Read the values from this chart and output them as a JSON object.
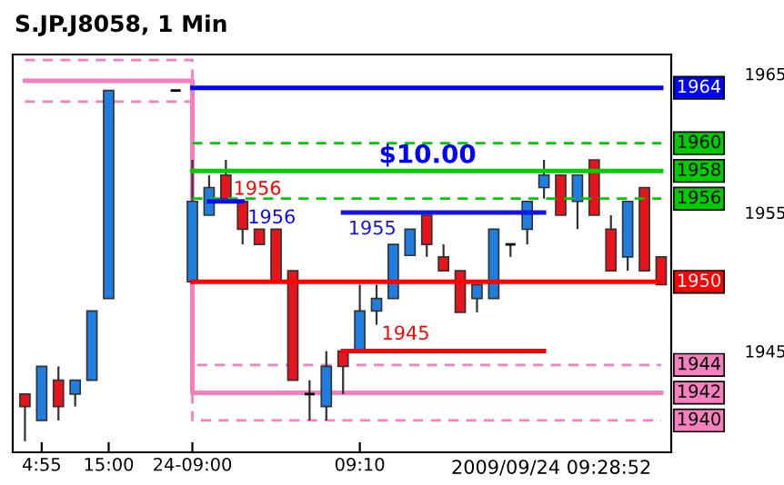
{
  "chart_data": {
    "type": "candlestick",
    "title": "S.JP.J8058, 1 Min",
    "categories": [
      null,
      "4:55",
      null,
      null,
      null,
      "15:00",
      null,
      null,
      null,
      null,
      "24-09:00",
      null,
      null,
      null,
      null,
      null,
      null,
      null,
      null,
      null,
      "09:10",
      null,
      null,
      null,
      null,
      null,
      null,
      null,
      null,
      null,
      null,
      null,
      null,
      null,
      null,
      null,
      null,
      null,
      null
    ],
    "ohlc": [
      [
        1941.9,
        1941.9,
        1938.5,
        1941.0
      ],
      [
        1940.0,
        1943.9,
        1940.0,
        1943.9
      ],
      [
        1942.9,
        1943.9,
        1940.0,
        1941.0
      ],
      [
        1941.9,
        1942.9,
        1941.0,
        1942.9
      ],
      [
        1942.9,
        1947.9,
        1942.9,
        1947.9
      ],
      [
        1948.8,
        1963.8,
        1948.8,
        1963.8
      ],
      null,
      null,
      null,
      [
        1963.8,
        1963.8,
        1963.8,
        1963.8
      ],
      [
        1950.0,
        1958.8,
        1950.0,
        1955.8
      ],
      [
        1954.8,
        1957.7,
        1954.8,
        1956.8
      ],
      [
        1957.7,
        1958.8,
        1956.0,
        1956.0
      ],
      [
        1955.8,
        1955.8,
        1952.7,
        1953.8
      ],
      [
        1953.8,
        1953.8,
        1952.7,
        1952.7
      ],
      [
        1953.8,
        1953.8,
        1950.0,
        1950.0
      ],
      [
        1950.8,
        1950.8,
        1942.9,
        1942.9
      ],
      [
        1941.9,
        1942.9,
        1940.0,
        1941.9
      ],
      [
        1941.0,
        1945.0,
        1940.0,
        1943.9
      ],
      [
        1945.0,
        1945.0,
        1941.9,
        1943.9
      ],
      [
        1945.0,
        1949.8,
        1945.0,
        1947.9
      ],
      [
        1947.9,
        1949.8,
        1946.9,
        1948.8
      ],
      [
        1948.8,
        1952.7,
        1948.8,
        1952.7
      ],
      [
        1951.9,
        1953.8,
        1951.9,
        1953.8
      ],
      [
        1954.8,
        1954.8,
        1951.8,
        1952.7
      ],
      [
        1951.8,
        1952.7,
        1950.8,
        1950.8
      ],
      [
        1950.8,
        1950.8,
        1947.8,
        1947.8
      ],
      [
        1948.8,
        1949.8,
        1947.8,
        1949.8
      ],
      [
        1948.8,
        1953.8,
        1948.8,
        1953.8
      ],
      [
        1952.7,
        1952.7,
        1951.8,
        1952.7
      ],
      [
        1953.8,
        1955.8,
        1952.7,
        1955.8
      ],
      [
        1956.8,
        1958.8,
        1956.0,
        1957.7
      ],
      [
        1957.7,
        1957.7,
        1954.8,
        1954.8
      ],
      [
        1955.8,
        1957.7,
        1953.8,
        1957.7
      ],
      [
        1958.8,
        1958.8,
        1954.8,
        1954.8
      ],
      [
        1953.8,
        1954.8,
        1950.8,
        1950.8
      ],
      [
        1951.8,
        1955.8,
        1950.8,
        1955.8
      ],
      [
        1956.8,
        1956.8,
        1950.8,
        1950.8
      ],
      [
        1951.8,
        1951.8,
        1949.8,
        1949.8
      ]
    ],
    "colors": [
      "#e8141c",
      "#1e7fe0",
      "#e8141c",
      "#1e7fe0",
      "#1e7fe0",
      "#1e7fe0",
      null,
      null,
      null,
      "#000000",
      "#1e7fe0",
      "#1e7fe0",
      "#e8141c",
      "#e8141c",
      "#e8141c",
      "#e8141c",
      "#e8141c",
      "#000000",
      "#1e7fe0",
      "#e8141c",
      "#1e7fe0",
      "#1e7fe0",
      "#1e7fe0",
      "#1e7fe0",
      "#e8141c",
      "#e8141c",
      "#e8141c",
      "#1e7fe0",
      "#1e7fe0",
      "#000000",
      "#1e7fe0",
      "#1e7fe0",
      "#e8141c",
      "#1e7fe0",
      "#e8141c",
      "#e8141c",
      "#1e7fe0",
      "#e8141c",
      "#e8141c"
    ],
    "series": [
      {
        "type": "step",
        "color": "#f77fbf",
        "line_style": "dashed",
        "values": [
          1966,
          1966,
          1966,
          1966,
          1966,
          1966,
          1966,
          1966,
          1966,
          1966,
          1944,
          1944,
          1944,
          1944,
          1944,
          1944,
          1944,
          1944,
          1944,
          1944,
          1944,
          1944,
          1944,
          1944,
          1944,
          1944,
          1944,
          1944,
          1944,
          1944,
          1944,
          1944,
          1944,
          1944,
          1944,
          1944,
          1944,
          1944,
          1944
        ],
        "value_labels": [
          null,
          null,
          null,
          null,
          null,
          null,
          null,
          null,
          null,
          null,
          null,
          null,
          null,
          null,
          null,
          null,
          null,
          null,
          null,
          null,
          null,
          null,
          null,
          null,
          null,
          null,
          null,
          null,
          null,
          null,
          null,
          null,
          null,
          null,
          null,
          null,
          null,
          null,
          "1944"
        ]
      },
      {
        "type": "step",
        "color": "#f77fbf",
        "line_style": "solid",
        "values": [
          1964.5,
          1964.5,
          1964.5,
          1964.5,
          1964.5,
          1964.5,
          1964.5,
          1964.5,
          1964.5,
          1964.5,
          1942,
          1942,
          1942,
          1942,
          1942,
          1942,
          1942,
          1942,
          1942,
          1942,
          1942,
          1942,
          1942,
          1942,
          1942,
          1942,
          1942,
          1942,
          1942,
          1942,
          1942,
          1942,
          1942,
          1942,
          1942,
          1942,
          1942,
          1942,
          1942
        ],
        "value_labels": [
          null,
          null,
          null,
          null,
          null,
          null,
          null,
          null,
          null,
          null,
          null,
          null,
          null,
          null,
          null,
          null,
          null,
          null,
          null,
          null,
          null,
          null,
          null,
          null,
          null,
          null,
          null,
          null,
          null,
          null,
          null,
          null,
          null,
          null,
          null,
          null,
          null,
          null,
          "1942"
        ]
      },
      {
        "type": "step",
        "color": "#f77fbf",
        "line_style": "dashed",
        "values": [
          1963,
          1963,
          1963,
          1963,
          1963,
          1963,
          1963,
          1963,
          1963,
          1963,
          1940,
          1940,
          1940,
          1940,
          1940,
          1940,
          1940,
          1940,
          1940,
          1940,
          1940,
          1940,
          1940,
          1940,
          1940,
          1940,
          1940,
          1940,
          1940,
          1940,
          1940,
          1940,
          1940,
          1940,
          1940,
          1940,
          1940,
          1940,
          1940
        ],
        "value_labels": [
          null,
          null,
          null,
          null,
          null,
          null,
          null,
          null,
          null,
          null,
          null,
          null,
          null,
          null,
          null,
          null,
          null,
          null,
          null,
          null,
          null,
          null,
          null,
          null,
          null,
          null,
          null,
          null,
          null,
          null,
          null,
          null,
          null,
          null,
          null,
          null,
          null,
          null,
          "1940"
        ]
      },
      {
        "type": "line",
        "color": "#0000ff",
        "line_style": "solid",
        "values": [
          null,
          null,
          null,
          null,
          null,
          null,
          null,
          null,
          null,
          null,
          1964,
          1964,
          1964,
          1964,
          1964,
          1964,
          1964,
          1964,
          1964,
          1964,
          1964,
          1964,
          1964,
          1964,
          1964,
          1964,
          1964,
          1964,
          1964,
          1964,
          1964,
          1964,
          1964,
          1964,
          1964,
          1964,
          1964,
          1964,
          1964
        ],
        "value_labels": [
          null,
          null,
          null,
          null,
          null,
          null,
          null,
          null,
          null,
          null,
          null,
          null,
          null,
          null,
          null,
          null,
          null,
          null,
          null,
          null,
          null,
          null,
          null,
          null,
          null,
          null,
          null,
          null,
          null,
          null,
          null,
          null,
          null,
          null,
          null,
          null,
          null,
          null,
          "1964"
        ]
      },
      {
        "type": "line",
        "color": "#00cc00",
        "line_style": "dashed",
        "values": [
          null,
          null,
          null,
          null,
          null,
          null,
          null,
          null,
          null,
          null,
          1960,
          1960,
          1960,
          1960,
          1960,
          1960,
          1960,
          1960,
          1960,
          1960,
          1960,
          1960,
          1960,
          1960,
          1960,
          1960,
          1960,
          1960,
          1960,
          1960,
          1960,
          1960,
          1960,
          1960,
          1960,
          1960,
          1960,
          1960,
          1960
        ],
        "value_labels": [
          null,
          null,
          null,
          null,
          null,
          null,
          null,
          null,
          null,
          null,
          null,
          null,
          null,
          null,
          null,
          null,
          null,
          null,
          null,
          null,
          null,
          null,
          null,
          null,
          null,
          null,
          null,
          null,
          null,
          null,
          null,
          null,
          null,
          null,
          null,
          null,
          null,
          null,
          "1960"
        ]
      },
      {
        "type": "line",
        "color": "#00cc00",
        "line_style": "solid",
        "values": [
          null,
          null,
          null,
          null,
          null,
          null,
          null,
          null,
          null,
          null,
          1958,
          1958,
          1958,
          1958,
          1958,
          1958,
          1958,
          1958,
          1958,
          1958,
          1958,
          1958,
          1958,
          1958,
          1958,
          1958,
          1958,
          1958,
          1958,
          1958,
          1958,
          1958,
          1958,
          1958,
          1958,
          1958,
          1958,
          1958,
          1958
        ],
        "value_labels": [
          null,
          null,
          null,
          null,
          null,
          null,
          null,
          null,
          null,
          null,
          null,
          null,
          null,
          null,
          null,
          null,
          null,
          null,
          null,
          null,
          null,
          null,
          null,
          null,
          null,
          null,
          null,
          null,
          null,
          null,
          null,
          null,
          null,
          null,
          null,
          null,
          null,
          null,
          "1958"
        ]
      },
      {
        "type": "line",
        "color": "#00cc00",
        "line_style": "dashed",
        "values": [
          null,
          null,
          null,
          null,
          null,
          null,
          null,
          null,
          null,
          null,
          1956,
          1956,
          1956,
          1956,
          1956,
          1956,
          1956,
          1956,
          1956,
          1956,
          1956,
          1956,
          1956,
          1956,
          1956,
          1956,
          1956,
          1956,
          1956,
          1956,
          1956,
          1956,
          1956,
          1956,
          1956,
          1956,
          1956,
          1956,
          1956
        ],
        "value_labels": [
          null,
          null,
          null,
          null,
          null,
          null,
          null,
          null,
          null,
          null,
          null,
          null,
          null,
          null,
          null,
          null,
          null,
          null,
          null,
          null,
          null,
          null,
          null,
          null,
          null,
          null,
          null,
          null,
          null,
          null,
          null,
          null,
          null,
          null,
          null,
          null,
          null,
          null,
          "1956"
        ]
      },
      {
        "type": "line",
        "color": "#ff0000",
        "line_style": "solid",
        "values": [
          null,
          null,
          null,
          null,
          null,
          null,
          null,
          null,
          null,
          null,
          1950,
          1950,
          1950,
          1950,
          1950,
          1950,
          1950,
          1950,
          1950,
          1950,
          1950,
          1950,
          1950,
          1950,
          1950,
          1950,
          1950,
          1950,
          1950,
          1950,
          1950,
          1950,
          1950,
          1950,
          1950,
          1950,
          1950,
          1950,
          1950
        ],
        "value_labels": [
          null,
          null,
          null,
          null,
          null,
          null,
          null,
          null,
          null,
          null,
          null,
          null,
          null,
          null,
          null,
          null,
          null,
          null,
          null,
          null,
          null,
          null,
          null,
          null,
          null,
          null,
          null,
          null,
          null,
          null,
          null,
          null,
          null,
          null,
          null,
          null,
          null,
          null,
          "1950"
        ]
      },
      {
        "type": "line",
        "color": "#0a0af0",
        "line_style": "solid",
        "values": [
          null,
          null,
          null,
          null,
          null,
          null,
          null,
          null,
          null,
          null,
          null,
          1955.8,
          1955.8,
          1955.8,
          null,
          null,
          null,
          null,
          null,
          null,
          null,
          null,
          null,
          null,
          null,
          null,
          null,
          null,
          null,
          null,
          null,
          null,
          null,
          null,
          null,
          null,
          null,
          null,
          null
        ],
        "value_labels": [
          null,
          null,
          null,
          null,
          null,
          null,
          null,
          null,
          null,
          null,
          null,
          null,
          null,
          "1956",
          null,
          null,
          null,
          null,
          null,
          null,
          null,
          null,
          null,
          null,
          null,
          null,
          null,
          null,
          null,
          null,
          null,
          null,
          null,
          null,
          null,
          null,
          null,
          null,
          null
        ]
      },
      {
        "type": "line",
        "color": "#1414e6",
        "line_style": "solid",
        "values": [
          null,
          null,
          null,
          null,
          null,
          null,
          null,
          null,
          null,
          null,
          null,
          null,
          null,
          null,
          null,
          null,
          null,
          null,
          null,
          1955,
          1955,
          1955,
          1955,
          1955,
          1955,
          1955,
          1955,
          1955,
          1955,
          1955,
          1955,
          1955,
          null,
          null,
          null,
          null,
          null,
          null,
          null
        ],
        "value_labels": [
          null,
          null,
          null,
          null,
          null,
          null,
          null,
          null,
          null,
          null,
          null,
          null,
          null,
          null,
          null,
          null,
          null,
          null,
          null,
          "1955",
          null,
          null,
          null,
          null,
          null,
          null,
          null,
          null,
          null,
          null,
          null,
          null,
          null,
          null,
          null,
          null,
          null,
          null,
          null
        ]
      },
      {
        "type": "line",
        "color": "#ff0000",
        "line_style": "solid",
        "values": [
          null,
          null,
          null,
          null,
          null,
          null,
          null,
          null,
          null,
          null,
          null,
          null,
          null,
          null,
          null,
          null,
          null,
          null,
          null,
          1945,
          1945,
          1945,
          1945,
          1945,
          1945,
          1945,
          1945,
          1945,
          1945,
          1945,
          1945,
          1945,
          null,
          null,
          null,
          null,
          null,
          null,
          null
        ],
        "value_labels": [
          null,
          null,
          null,
          null,
          null,
          null,
          null,
          null,
          null,
          null,
          null,
          null,
          null,
          null,
          null,
          null,
          null,
          null,
          null,
          null,
          null,
          "1945",
          null,
          null,
          null,
          null,
          null,
          null,
          null,
          null,
          null,
          null,
          null,
          null,
          null,
          null,
          null,
          null,
          null
        ]
      }
    ],
    "ylim": [
      1937.7,
      1966.4
    ],
    "yticks": [
      1965,
      1955,
      1945
    ],
    "annotations": [
      "$10.00",
      "2009/09/24 09:28:52",
      {
        "text": "1956",
        "y": 1956
      }
    ],
    "grid": false,
    "legend": false
  }
}
